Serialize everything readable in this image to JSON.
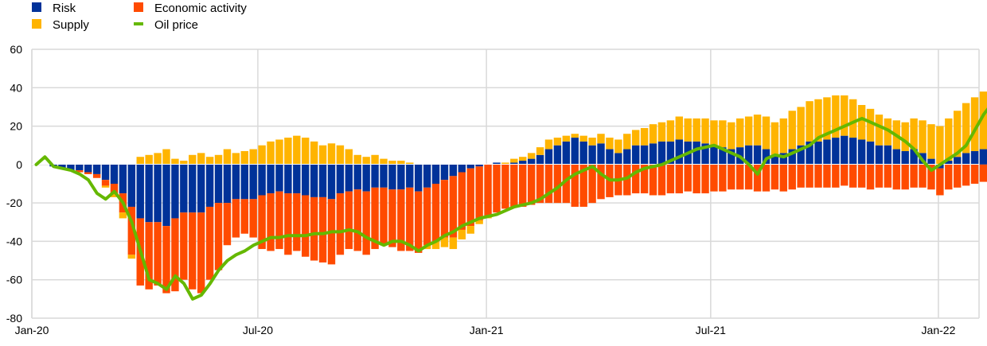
{
  "chart_data": {
    "type": "bar",
    "subtype": "stacked-bar-with-line",
    "title": "",
    "xlabel": "",
    "ylabel": "",
    "ylim": [
      -80,
      60
    ],
    "yticks": [
      -80,
      -60,
      -40,
      -20,
      0,
      20,
      40,
      60
    ],
    "xticks": [
      {
        "label": "Jan-20",
        "week": 0
      },
      {
        "label": "Jul-20",
        "week": 26
      },
      {
        "label": "Jan-21",
        "week": 52.3
      },
      {
        "label": "Jul-21",
        "week": 78.1
      },
      {
        "label": "Jan-22",
        "week": 104.3
      }
    ],
    "x_unit": "weeks since 1 Jan 2020",
    "grid": true,
    "legend": {
      "placement": "top-left",
      "entries": [
        "Risk",
        "Economic activity",
        "Supply",
        "Oil price"
      ]
    },
    "colors": {
      "Risk": "#003299",
      "Economic activity": "#FF4B00",
      "Supply": "#FFB400",
      "Oil price": "#65B800"
    },
    "series": [
      {
        "name": "Risk",
        "kind": "bar",
        "values": [
          0,
          0,
          -1,
          -2,
          -3,
          -3,
          -4,
          -5,
          -8,
          -10,
          -15,
          -22,
          -28,
          -30,
          -30,
          -32,
          -28,
          -25,
          -25,
          -25,
          -22,
          -20,
          -20,
          -18,
          -18,
          -18,
          -16,
          -15,
          -14,
          -15,
          -15,
          -16,
          -17,
          -17,
          -18,
          -15,
          -14,
          -13,
          -14,
          -12,
          -12,
          -13,
          -13,
          -12,
          -14,
          -12,
          -10,
          -8,
          -6,
          -4,
          -2,
          -1,
          0,
          1,
          0,
          1,
          2,
          3,
          5,
          8,
          10,
          12,
          14,
          12,
          10,
          11,
          8,
          6,
          8,
          10,
          10,
          11,
          12,
          12,
          13,
          12,
          12,
          11,
          10,
          9,
          8,
          9,
          10,
          10,
          8,
          5,
          6,
          8,
          10,
          12,
          12,
          13,
          14,
          15,
          14,
          13,
          12,
          10,
          10,
          8,
          7,
          8,
          6,
          3,
          -2,
          2,
          4,
          6,
          7,
          8,
          8
        ]
      },
      {
        "name": "Economic activity",
        "kind": "bar",
        "values": [
          0,
          0,
          0,
          0,
          0,
          -1,
          -1,
          -2,
          -3,
          -5,
          -10,
          -25,
          -35,
          -35,
          -33,
          -35,
          -38,
          -35,
          -40,
          -42,
          -38,
          -35,
          -22,
          -20,
          -18,
          -20,
          -28,
          -30,
          -30,
          -32,
          -30,
          -32,
          -33,
          -34,
          -34,
          -32,
          -30,
          -32,
          -33,
          -32,
          -30,
          -30,
          -32,
          -33,
          -32,
          -30,
          -30,
          -30,
          -32,
          -30,
          -30,
          -28,
          -27,
          -25,
          -23,
          -22,
          -22,
          -21,
          -20,
          -20,
          -20,
          -20,
          -22,
          -22,
          -20,
          -18,
          -17,
          -16,
          -16,
          -15,
          -15,
          -16,
          -16,
          -15,
          -15,
          -14,
          -15,
          -15,
          -14,
          -14,
          -13,
          -13,
          -13,
          -14,
          -14,
          -13,
          -14,
          -13,
          -12,
          -12,
          -12,
          -12,
          -12,
          -11,
          -12,
          -12,
          -13,
          -12,
          -12,
          -13,
          -13,
          -12,
          -12,
          -13,
          -14,
          -13,
          -12,
          -11,
          -10,
          -9,
          -8
        ]
      },
      {
        "name": "Supply",
        "kind": "bar",
        "values": [
          0,
          0,
          0,
          0,
          0,
          0,
          0,
          0,
          -1,
          -2,
          -3,
          -2,
          4,
          5,
          6,
          8,
          3,
          2,
          5,
          6,
          4,
          5,
          8,
          6,
          7,
          8,
          10,
          12,
          13,
          14,
          15,
          14,
          12,
          10,
          11,
          10,
          8,
          5,
          4,
          5,
          3,
          2,
          2,
          1,
          0,
          -2,
          -4,
          -5,
          -6,
          -5,
          -4,
          -2,
          -1,
          0,
          1,
          2,
          2,
          3,
          4,
          5,
          4,
          3,
          2,
          3,
          4,
          5,
          6,
          7,
          8,
          8,
          9,
          10,
          10,
          11,
          12,
          12,
          12,
          13,
          13,
          14,
          14,
          15,
          15,
          16,
          17,
          17,
          18,
          20,
          20,
          21,
          22,
          22,
          22,
          21,
          20,
          18,
          17,
          16,
          14,
          15,
          15,
          16,
          17,
          18,
          20,
          22,
          24,
          26,
          28,
          30,
          30
        ]
      },
      {
        "name": "Oil price",
        "kind": "line",
        "values": [
          0,
          4,
          -1,
          -2,
          -3,
          -5,
          -8,
          -15,
          -18,
          -14,
          -20,
          -30,
          -45,
          -60,
          -62,
          -65,
          -58,
          -62,
          -70,
          -68,
          -62,
          -55,
          -50,
          -47,
          -45,
          -42,
          -40,
          -38,
          -38,
          -37,
          -37,
          -37,
          -36,
          -36,
          -35,
          -35,
          -34,
          -35,
          -38,
          -40,
          -42,
          -40,
          -40,
          -42,
          -45,
          -42,
          -40,
          -37,
          -35,
          -32,
          -30,
          -28,
          -27,
          -26,
          -24,
          -22,
          -21,
          -20,
          -18,
          -15,
          -12,
          -8,
          -5,
          -3,
          -1,
          -5,
          -8,
          -8,
          -7,
          -4,
          -2,
          -1,
          0,
          2,
          4,
          6,
          8,
          9,
          10,
          8,
          6,
          4,
          0,
          -5,
          3,
          5,
          4,
          6,
          8,
          10,
          14,
          16,
          18,
          20,
          22,
          24,
          22,
          20,
          18,
          15,
          12,
          8,
          2,
          -3,
          0,
          3,
          6,
          10,
          18,
          26,
          32
        ]
      }
    ]
  }
}
